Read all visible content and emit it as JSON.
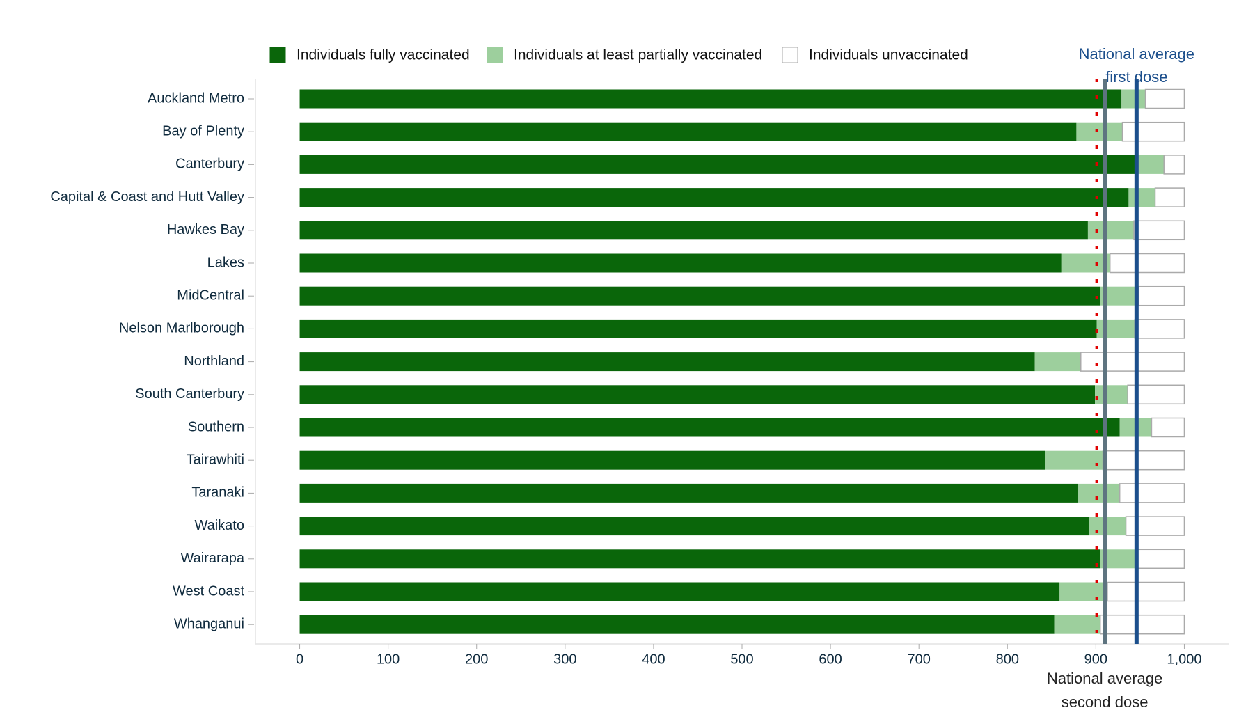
{
  "chart_data": {
    "type": "stacked-barh",
    "categories": [
      "Auckland Metro",
      "Bay of Plenty",
      "Canterbury",
      "Capital & Coast and Hutt Valley",
      "Hawkes Bay",
      "Lakes",
      "MidCentral",
      "Nelson Marlborough",
      "Northland",
      "South Canterbury",
      "Southern",
      "Tairawhiti",
      "Taranaki",
      "Waikato",
      "Wairarapa",
      "West Coast",
      "Whanganui"
    ],
    "series": [
      {
        "name": "Individuals fully vaccinated",
        "color": "#0a660a",
        "values": [
          929,
          878,
          944,
          937,
          891,
          861,
          905,
          901,
          831,
          899,
          927,
          843,
          880,
          892,
          905,
          859,
          853
        ]
      },
      {
        "name": "Individuals at least partially vaccinated",
        "color": "#9dcf9d",
        "values": [
          27,
          52,
          33,
          30,
          52,
          55,
          43,
          43,
          52,
          37,
          36,
          65,
          47,
          42,
          41,
          54,
          52
        ]
      },
      {
        "name": "Individuals unvaccinated",
        "color": "#ffffff",
        "values": [
          44,
          70,
          23,
          33,
          57,
          84,
          52,
          56,
          117,
          64,
          37,
          92,
          73,
          66,
          54,
          87,
          95
        ]
      }
    ],
    "reference_lines": [
      {
        "value": 901,
        "color": "#e00000",
        "style": "dotted"
      },
      {
        "value": 910,
        "color": "#5e7480",
        "label": [
          "National average",
          "second dose"
        ],
        "label_position": "bottom"
      },
      {
        "value": 946,
        "color": "#1c4f8c",
        "label": [
          "National average",
          "first dose"
        ],
        "label_position": "top"
      }
    ],
    "xlim": [
      -50,
      1050
    ],
    "xticks": [
      0,
      100,
      200,
      300,
      400,
      500,
      600,
      700,
      800,
      900,
      {
        "value": 1000,
        "label": "1,000"
      }
    ]
  }
}
